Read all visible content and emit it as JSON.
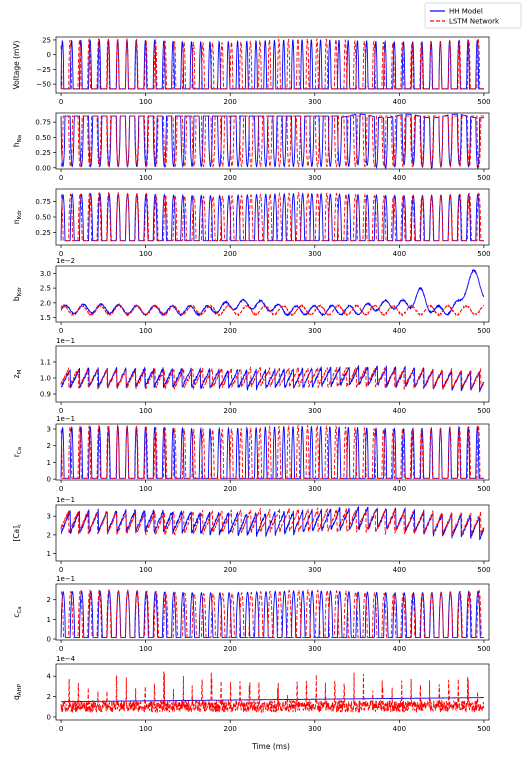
{
  "figure": {
    "legend": {
      "placement": "top-right",
      "entries": [
        {
          "label": "HH Model",
          "color": "#0000ff",
          "style": "solid"
        },
        {
          "label": "LSTM Network",
          "color": "#ff0000",
          "style": "dashed"
        }
      ]
    },
    "xlabel": "Time (ms)"
  },
  "chart_data": [
    {
      "type": "line",
      "ylabel": "Voltage (mV)",
      "ylabel_sub": "",
      "exponent": "",
      "xlim": [
        -6,
        506
      ],
      "ylim": [
        -65,
        30
      ],
      "xticks": [
        0,
        100,
        200,
        300,
        400,
        500
      ],
      "show_xticklabels": true,
      "yticks": [
        -50,
        -25,
        0,
        25
      ],
      "ytick_labels": [
        "−50",
        "−25",
        "0",
        "25"
      ],
      "signal": {
        "kind": "spike",
        "base": -58,
        "peak": 24,
        "period": 10.9,
        "width": 3.2,
        "drift": 0
      },
      "series": [
        {
          "name": "HH Model",
          "color": "#0000ff",
          "dash": ""
        },
        {
          "name": "LSTM Network",
          "color": "#ff0000",
          "dash": "4,2"
        }
      ]
    },
    {
      "type": "line",
      "ylabel": "h",
      "ylabel_sub": "Na",
      "exponent": "",
      "xlim": [
        -6,
        506
      ],
      "ylim": [
        -0.02,
        0.9
      ],
      "xticks": [
        0,
        100,
        200,
        300,
        400,
        500
      ],
      "show_xticklabels": true,
      "yticks": [
        0.0,
        0.25,
        0.5,
        0.75
      ],
      "ytick_labels": [
        "0.00",
        "0.25",
        "0.50",
        "0.75"
      ],
      "signal": {
        "kind": "inverse",
        "base": 0.85,
        "peak": 0.02,
        "period": 10.9,
        "width": 4.5,
        "drift": 0
      },
      "series": [
        {
          "name": "HH Model",
          "color": "#0000ff",
          "dash": ""
        },
        {
          "name": "LSTM Network",
          "color": "#ff0000",
          "dash": "4,2"
        }
      ]
    },
    {
      "type": "line",
      "ylabel": "n",
      "ylabel_sub": "Kdr",
      "exponent": "",
      "xlim": [
        -6,
        506
      ],
      "ylim": [
        0.05,
        0.95
      ],
      "xticks": [
        0,
        100,
        200,
        300,
        400,
        500
      ],
      "show_xticklabels": true,
      "yticks": [
        0.25,
        0.5,
        0.75
      ],
      "ytick_labels": [
        "0.25",
        "0.50",
        "0.75"
      ],
      "signal": {
        "kind": "spike",
        "base": 0.12,
        "peak": 0.86,
        "period": 10.9,
        "width": 4.5,
        "drift": 0
      },
      "series": [
        {
          "name": "HH Model",
          "color": "#0000ff",
          "dash": ""
        },
        {
          "name": "LSTM Network",
          "color": "#ff0000",
          "dash": "4,2"
        }
      ]
    },
    {
      "type": "line",
      "ylabel": "b",
      "ylabel_sub": "Kdr",
      "exponent": "1e−2",
      "xlim": [
        -6,
        506
      ],
      "ylim": [
        1.35,
        3.25
      ],
      "xticks": [
        0,
        100,
        200,
        300,
        400,
        500
      ],
      "show_xticklabels": true,
      "yticks": [
        1.5,
        2.0,
        2.5,
        3.0
      ],
      "ytick_labels": [
        "1.5",
        "2.0",
        "2.5",
        "3.0"
      ],
      "signal": {
        "kind": "wave",
        "base": 1.75,
        "peak": 0.15,
        "period": 21,
        "width": 0,
        "drift": 0.2
      },
      "series": [
        {
          "name": "HH Model",
          "color": "#0000ff",
          "dash": ""
        },
        {
          "name": "LSTM Network",
          "color": "#ff0000",
          "dash": "4,2"
        }
      ]
    },
    {
      "type": "line",
      "ylabel": "z",
      "ylabel_sub": "M",
      "exponent": "1e−1",
      "xlim": [
        -6,
        506
      ],
      "ylim": [
        0.85,
        1.2
      ],
      "xticks": [
        0,
        100,
        200,
        300,
        400,
        500
      ],
      "show_xticklabels": true,
      "yticks": [
        0.9,
        1.0,
        1.1
      ],
      "ytick_labels": [
        "0.9",
        "1.0",
        "1.1"
      ],
      "signal": {
        "kind": "saw",
        "base": 1.0,
        "peak": 0.06,
        "period": 11,
        "width": 0,
        "drift": 0.02
      },
      "series": [
        {
          "name": "HH Model",
          "color": "#0000ff",
          "dash": ""
        },
        {
          "name": "LSTM Network",
          "color": "#ff0000",
          "dash": "4,2"
        }
      ]
    },
    {
      "type": "line",
      "ylabel": "r",
      "ylabel_sub": "Ca",
      "exponent": "1e−1",
      "xlim": [
        -6,
        506
      ],
      "ylim": [
        -0.05,
        3.3
      ],
      "xticks": [
        0,
        100,
        200,
        300,
        400,
        500
      ],
      "show_xticklabels": true,
      "yticks": [
        0,
        1,
        2,
        3
      ],
      "ytick_labels": [
        "0",
        "1",
        "2",
        "3"
      ],
      "signal": {
        "kind": "spike",
        "base": 0.05,
        "peak": 3.1,
        "period": 10.9,
        "width": 3.5,
        "drift": 0
      },
      "series": [
        {
          "name": "HH Model",
          "color": "#0000ff",
          "dash": ""
        },
        {
          "name": "LSTM Network",
          "color": "#ff0000",
          "dash": "4,2"
        }
      ]
    },
    {
      "type": "line",
      "ylabel": "[Ca]",
      "ylabel_sub": "i",
      "exponent": "1e−1",
      "xlim": [
        -6,
        506
      ],
      "ylim": [
        0.6,
        3.6
      ],
      "xticks": [
        0,
        100,
        200,
        300,
        400,
        500
      ],
      "show_xticklabels": true,
      "yticks": [
        1,
        2,
        3
      ],
      "ytick_labels": [
        "1",
        "2",
        "3"
      ],
      "signal": {
        "kind": "saw",
        "base": 2.7,
        "peak": 0.6,
        "period": 11,
        "width": 0,
        "drift": 0.3
      },
      "series": [
        {
          "name": "HH Model",
          "color": "#0000ff",
          "dash": ""
        },
        {
          "name": "LSTM Network",
          "color": "#ff0000",
          "dash": "4,2"
        }
      ]
    },
    {
      "type": "line",
      "ylabel": "c",
      "ylabel_sub": "Ca",
      "exponent": "1e−1",
      "xlim": [
        -6,
        506
      ],
      "ylim": [
        -0.05,
        2.8
      ],
      "xticks": [
        0,
        100,
        200,
        300,
        400,
        500
      ],
      "show_xticklabels": true,
      "yticks": [
        0,
        1,
        2
      ],
      "ytick_labels": [
        "0",
        "1",
        "2"
      ],
      "signal": {
        "kind": "spike",
        "base": 0.08,
        "peak": 2.4,
        "period": 10.9,
        "width": 5,
        "drift": 0
      },
      "series": [
        {
          "name": "HH Model",
          "color": "#0000ff",
          "dash": ""
        },
        {
          "name": "LSTM Network",
          "color": "#ff0000",
          "dash": "4,2"
        }
      ]
    },
    {
      "type": "line",
      "ylabel": "q",
      "ylabel_sub": "AHP",
      "exponent": "1e−4",
      "xlim": [
        -6,
        506
      ],
      "ylim": [
        -0.3,
        5.2
      ],
      "xticks": [
        0,
        100,
        200,
        300,
        400,
        500
      ],
      "show_xticklabels": true,
      "yticks": [
        0,
        2,
        4
      ],
      "ytick_labels": [
        "0",
        "2",
        "4"
      ],
      "signal": {
        "kind": "noise",
        "base": 1.5,
        "peak": 2.5,
        "period": 10.9,
        "width": 0,
        "drift": 0.3
      },
      "series": [
        {
          "name": "HH Model",
          "color": "#0000ff",
          "dash": ""
        },
        {
          "name": "LSTM Network",
          "color": "#ff0000",
          "dash": "4,2"
        }
      ]
    }
  ]
}
